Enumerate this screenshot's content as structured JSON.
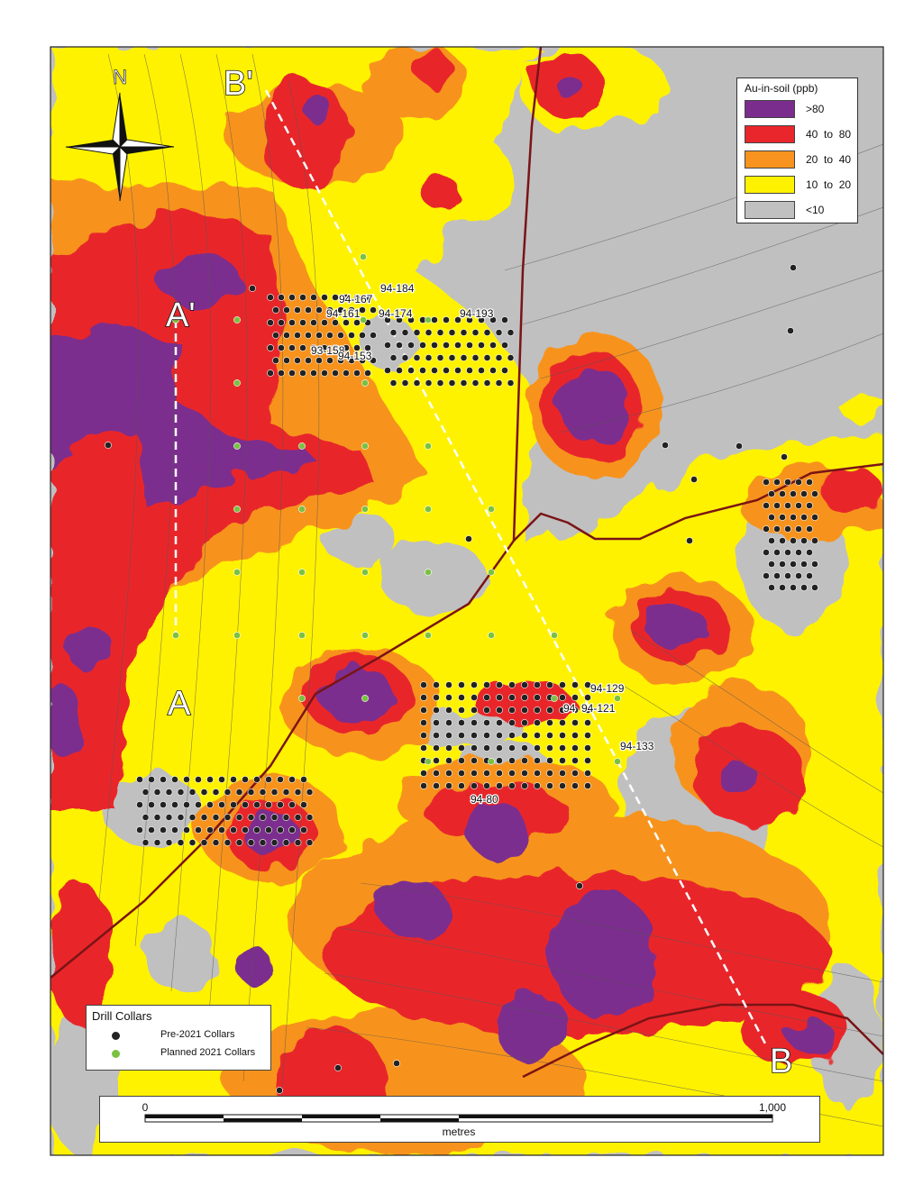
{
  "legend": {
    "title": "Au-in-soil (ppb)",
    "classes": [
      {
        "label": ">80",
        "color": "#7b2d8e"
      },
      {
        "label": "40  to  80",
        "color": "#e8262b"
      },
      {
        "label": "20  to  40",
        "color": "#f7931e"
      },
      {
        "label": "10  to  20",
        "color": "#fff200"
      },
      {
        "label": "<10",
        "color": "#c0c0c0"
      }
    ]
  },
  "collars": {
    "title": "Drill Collars",
    "items": [
      {
        "label": "Pre-2021 Collars",
        "color": "#222222"
      },
      {
        "label": "Planned 2021 Collars",
        "color": "#7ac143"
      }
    ]
  },
  "scale": {
    "start": "0",
    "end": "1,000",
    "unit": "metres"
  },
  "north": "N",
  "sections": {
    "a": "A",
    "a_prime": "A'",
    "b": "B",
    "b_prime": "B'"
  },
  "hole_labels": [
    "94-184",
    "94-167",
    "94-161",
    "94-174",
    "94-193",
    "93-158",
    "94-153",
    "94-129",
    "94-121",
    "94-133",
    "94-80",
    "94"
  ],
  "colors": {
    "road": "#7a1416",
    "section_line": "#ffffff",
    "contour": "#555555"
  }
}
